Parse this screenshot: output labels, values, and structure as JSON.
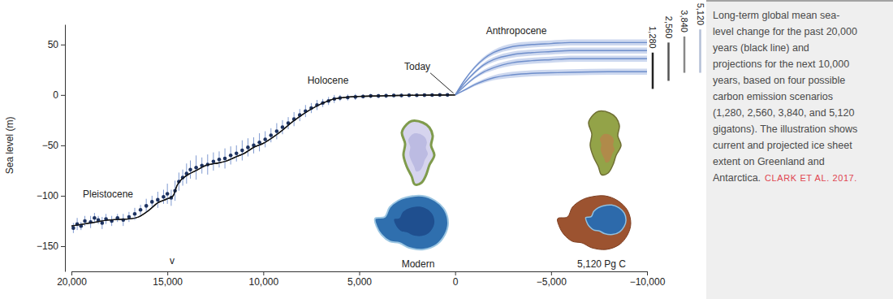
{
  "chart_data": {
    "type": "line",
    "y_label": "Sea level (m)",
    "xlim": [
      20000,
      -10000
    ],
    "ylim": [
      -175,
      70
    ],
    "xticks": [
      {
        "value": 20000,
        "label": "20,000"
      },
      {
        "value": 15000,
        "label": "15,000"
      },
      {
        "value": 10000,
        "label": "10,000"
      },
      {
        "value": 5000,
        "label": "5,000"
      },
      0,
      {
        "value": -5000,
        "label": "−5,000"
      },
      {
        "value": -10000,
        "label": "−10,000"
      }
    ],
    "yticks": [
      50,
      0,
      {
        "value": -50,
        "label": "−50"
      },
      {
        "value": -100,
        "label": "−100"
      },
      {
        "value": -150,
        "label": "−150"
      }
    ],
    "series": [
      {
        "type": "line",
        "color": "#111111",
        "x": [
          20000,
          19000,
          18000,
          17000,
          16500,
          16000,
          15500,
          15000,
          14700,
          14500,
          14000,
          13500,
          13000,
          12500,
          12000,
          11500,
          11000,
          10500,
          10000,
          9500,
          9000,
          8500,
          8000,
          7500,
          7000,
          6500,
          6000,
          5000,
          4000,
          3000,
          2000,
          1000,
          0
        ],
        "values": [
          -130,
          -127,
          -124,
          -123,
          -121,
          -115,
          -107,
          -103,
          -100,
          -90,
          -80,
          -75,
          -70,
          -68,
          -66,
          -62,
          -58,
          -52,
          -48,
          -42,
          -35,
          -27,
          -20,
          -14,
          -9,
          -5,
          -3,
          -1.5,
          -1,
          -0.5,
          -0.3,
          -0.1,
          0
        ]
      },
      {
        "type": "scatter",
        "color": "#1d3260",
        "marker": "circle",
        "x": [
          19900,
          19700,
          19500,
          19300,
          19000,
          18800,
          18600,
          18400,
          18200,
          17900,
          17600,
          17300,
          17000,
          16700,
          16400,
          16100,
          15800,
          15500,
          15200,
          15000,
          14800,
          14600,
          14400,
          14200,
          14000,
          13800,
          13500,
          13200,
          12900,
          12600,
          12300,
          12000,
          11700,
          11400,
          11100,
          10800,
          10500,
          10200,
          9900,
          9600,
          9300,
          9000,
          8700,
          8400,
          8100,
          7800,
          7500,
          7200,
          6900,
          6600,
          6300,
          6000,
          5600,
          5200,
          4800,
          4400,
          4000,
          3600,
          3200,
          2800,
          2400,
          2000,
          1600,
          1200,
          800,
          400
        ],
        "values": [
          -132,
          -128,
          -130,
          -125,
          -126,
          -122,
          -124,
          -127,
          -123,
          -125,
          -122,
          -124,
          -121,
          -118,
          -114,
          -110,
          -106,
          -104,
          -101,
          -98,
          -102,
          -95,
          -86,
          -82,
          -78,
          -74,
          -72,
          -70,
          -69,
          -66,
          -64,
          -63,
          -60,
          -58,
          -55,
          -52,
          -50,
          -47,
          -44,
          -40,
          -36,
          -32,
          -28,
          -24,
          -20,
          -16,
          -13,
          -10,
          -8,
          -6,
          -4,
          -3,
          -2.5,
          -2,
          -1.5,
          -1,
          -1,
          -0.8,
          -0.5,
          -0.5,
          -0.3,
          -0.3,
          -0.2,
          -0.1,
          0,
          0
        ],
        "errors": [
          5,
          6,
          4,
          5,
          6,
          5,
          4,
          6,
          5,
          5,
          4,
          6,
          5,
          6,
          5,
          7,
          6,
          8,
          7,
          10,
          8,
          10,
          9,
          8,
          10,
          9,
          12,
          8,
          10,
          9,
          8,
          10,
          9,
          8,
          10,
          9,
          8,
          9,
          8,
          7,
          8,
          7,
          6,
          7,
          6,
          6,
          5,
          5,
          4,
          4,
          4,
          3,
          3,
          3,
          2,
          2,
          2,
          2,
          2,
          2,
          2,
          1.5,
          1.5,
          1.5,
          1,
          1
        ]
      },
      {
        "type": "line",
        "name": "1,280",
        "color": "#222222",
        "x": [
          0,
          -500,
          -1000,
          -1500,
          -2000,
          -3000,
          -4000,
          -5000,
          -6000,
          -8000,
          -10000
        ],
        "values": [
          0,
          5,
          10,
          14,
          17,
          20,
          21.5,
          22,
          22.5,
          23,
          23
        ],
        "errors": [
          0,
          1,
          1.5,
          2,
          2.5,
          3,
          3,
          3,
          3,
          3,
          3
        ],
        "range": [
          6,
          42
        ]
      },
      {
        "type": "line",
        "name": "2,560",
        "color": "#555555",
        "x": [
          0,
          -500,
          -1000,
          -1500,
          -2000,
          -3000,
          -4000,
          -5000,
          -6000,
          -8000,
          -10000
        ],
        "values": [
          0,
          9,
          17,
          23,
          27,
          32,
          34,
          35,
          36,
          36,
          36
        ],
        "errors": [
          0,
          1,
          1.5,
          2,
          2.5,
          3,
          3,
          3,
          3,
          3,
          3
        ],
        "range": [
          14,
          52
        ]
      },
      {
        "type": "line",
        "name": "3,840",
        "color": "#888888",
        "x": [
          0,
          -500,
          -1000,
          -1500,
          -2000,
          -3000,
          -4000,
          -5000,
          -6000,
          -8000,
          -10000
        ],
        "values": [
          0,
          12,
          22,
          30,
          35,
          40,
          42,
          43,
          44,
          44,
          44
        ],
        "errors": [
          0,
          1,
          1.5,
          2,
          2.5,
          3,
          3,
          3,
          3,
          3,
          3
        ],
        "range": [
          22,
          58
        ]
      },
      {
        "type": "line",
        "name": "5,120",
        "color": "#b4bfd6",
        "x": [
          0,
          -500,
          -1000,
          -1500,
          -2000,
          -3000,
          -4000,
          -5000,
          -6000,
          -8000,
          -10000
        ],
        "values": [
          0,
          15,
          27,
          36,
          42,
          48,
          50,
          51,
          52,
          52,
          52
        ],
        "errors": [
          0,
          1,
          1.5,
          2,
          2.5,
          3,
          3,
          3,
          3,
          3,
          3
        ],
        "range": [
          22,
          65
        ]
      }
    ],
    "annotations": [
      {
        "text": "Pleistocene",
        "x": 18095,
        "y": -102
      },
      {
        "text": "Holocene",
        "x": 6627,
        "y": 11
      },
      {
        "text": "Today",
        "x": 1970,
        "y": 25,
        "arrow": [
          0,
          0
        ]
      },
      {
        "text": "Anthropocene",
        "x": -3190,
        "y": 60
      },
      {
        "text": "Modern",
        "x": 1930,
        "y": -171
      },
      {
        "text": "5,120 Pg C",
        "x": -7630,
        "y": -171
      },
      {
        "text": "v",
        "x": 14750,
        "y": -168
      }
    ],
    "caption": [
      "Long-term global mean sea-",
      "level change for the past 20,000",
      "years (black line) and",
      "projections for the next 10,000",
      "years, based on four possible",
      "carbon emission scenarios",
      "(1,280, 2,560, 3,840, and 5,120",
      "gigatons). The illustration shows",
      "current and projected ice sheet",
      "extent on Greenland and",
      "Antarctica."
    ],
    "source": "CLARK ET AL. 2017."
  }
}
